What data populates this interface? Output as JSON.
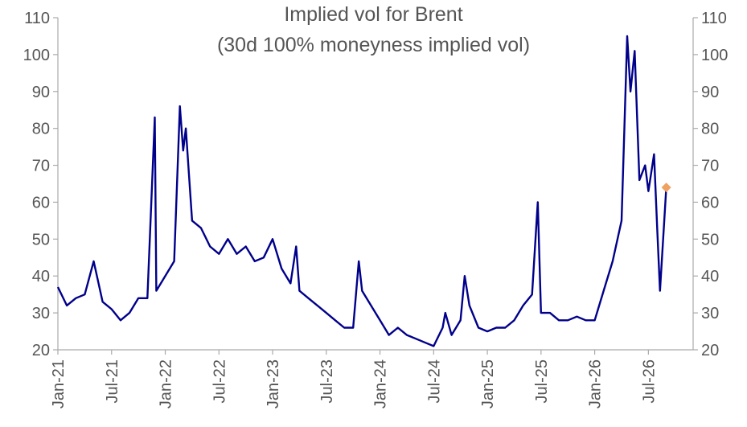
{
  "chart_data": {
    "type": "line",
    "title": "Implied vol for Brent",
    "subtitle": "(30d 100% moneyness implied vol)",
    "xlabel": "",
    "ylabel": "",
    "ylim": [
      20,
      110
    ],
    "yticks": [
      "20",
      "30",
      "40",
      "50",
      "60",
      "70",
      "80",
      "90",
      "100",
      "110"
    ],
    "xlim": [
      "2021-01",
      "2026-12"
    ],
    "xticks": [
      {
        "label": "Jan-21",
        "date": "2021-01"
      },
      {
        "label": "Jul-21",
        "date": "2021-07"
      },
      {
        "label": "Jan-22",
        "date": "2022-01"
      },
      {
        "label": "Jul-22",
        "date": "2022-07"
      },
      {
        "label": "Jan-23",
        "date": "2023-01"
      },
      {
        "label": "Jul-23",
        "date": "2023-07"
      },
      {
        "label": "Jan-24",
        "date": "2024-01"
      },
      {
        "label": "Jul-24",
        "date": "2024-07"
      },
      {
        "label": "Jan-25",
        "date": "2025-01"
      },
      {
        "label": "Jul-25",
        "date": "2025-07"
      },
      {
        "label": "Jan-26",
        "date": "2026-01"
      },
      {
        "label": "Jul-26",
        "date": "2026-07"
      }
    ],
    "grid": false,
    "line_color": "#00008B",
    "marker_color": "#F0A060",
    "series": [
      {
        "x": [
          "2021-01",
          "2021-02",
          "2021-03",
          "2021-04",
          "2021-05",
          "2021-06",
          "2021-07",
          "2021-08",
          "2021-09",
          "2021-10",
          "2021-11",
          "2021-11-26",
          "2021-12",
          "2022-01",
          "2022-02",
          "2022-02-20",
          "2022-03",
          "2022-03-10",
          "2022-04",
          "2022-05",
          "2022-06",
          "2022-07",
          "2022-08",
          "2022-09",
          "2022-10",
          "2022-11",
          "2022-12",
          "2023-01",
          "2023-02",
          "2023-03",
          "2023-03-20",
          "2023-04",
          "2023-05",
          "2023-06",
          "2023-07",
          "2023-08",
          "2023-09",
          "2023-10",
          "2023-10-20",
          "2023-11",
          "2023-12",
          "2024-01",
          "2024-02",
          "2024-03",
          "2024-04",
          "2024-05",
          "2024-06",
          "2024-07",
          "2024-08",
          "2024-08-10",
          "2024-09",
          "2024-10",
          "2024-10-15",
          "2024-11",
          "2024-12",
          "2025-01",
          "2025-02",
          "2025-03",
          "2025-04",
          "2025-05",
          "2025-06",
          "2025-06-20",
          "2025-07",
          "2025-08",
          "2025-09",
          "2025-10",
          "2025-11",
          "2025-12",
          "2026-01",
          "2026-02",
          "2026-03",
          "2026-04",
          "2026-04-20",
          "2026-05",
          "2026-05-15",
          "2026-06",
          "2026-06-20",
          "2026-07",
          "2026-07-20",
          "2026-08",
          "2026-08-10",
          "2026-09"
        ],
        "values": [
          37,
          32,
          34,
          35,
          44,
          33,
          31,
          28,
          30,
          34,
          34,
          83,
          36,
          40,
          44,
          86,
          74,
          80,
          55,
          53,
          48,
          46,
          50,
          46,
          48,
          44,
          45,
          50,
          42,
          38,
          48,
          36,
          34,
          32,
          30,
          28,
          26,
          26,
          44,
          36,
          32,
          28,
          24,
          26,
          24,
          23,
          22,
          21,
          26,
          30,
          24,
          28,
          40,
          32,
          26,
          25,
          26,
          26,
          28,
          32,
          35,
          60,
          30,
          30,
          28,
          28,
          29,
          28,
          28,
          36,
          44,
          55,
          105,
          90,
          101,
          66,
          70,
          63,
          73,
          52,
          36,
          64
        ]
      }
    ],
    "last_point": {
      "x": "2026-09",
      "y": 64
    }
  }
}
